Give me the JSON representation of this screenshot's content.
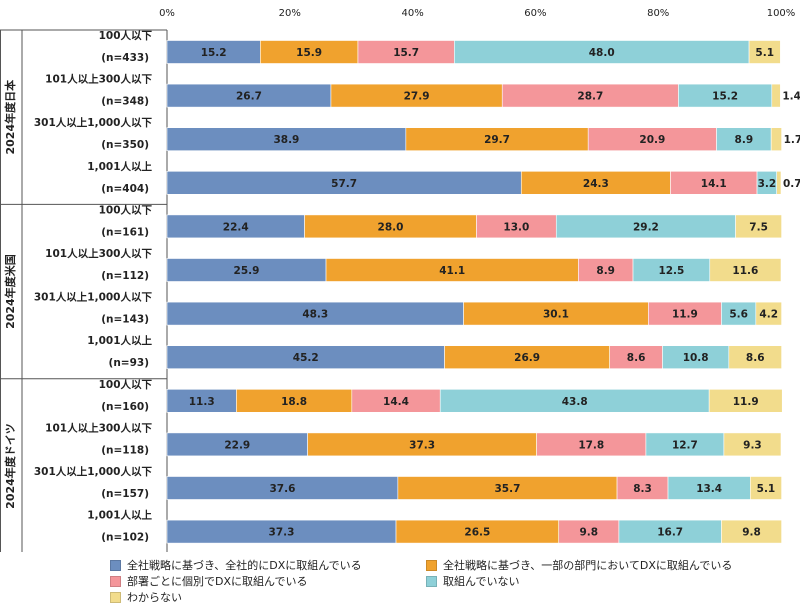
{
  "chart_data": {
    "type": "bar",
    "orientation": "horizontal",
    "stacked": true,
    "xlim": [
      0,
      100
    ],
    "x_ticks": [
      "0%",
      "20%",
      "40%",
      "60%",
      "80%",
      "100%"
    ],
    "series": [
      {
        "name": "全社戦略に基づき、全社的にDXに取組んでいる",
        "color": "#6C8EBF"
      },
      {
        "name": "全社戦略に基づき、一部の部門においてDXに取組んでいる",
        "color": "#F0A22E"
      },
      {
        "name": "部署ごとに個別でDXに取組んでいる",
        "color": "#F4969A"
      },
      {
        "name": "取組んでいない",
        "color": "#8ED0D8"
      },
      {
        "name": "わからない",
        "color": "#F2DC8C"
      }
    ],
    "groups": [
      {
        "label": "2024年度日本",
        "rows": [
          {
            "label": "100人以下",
            "n": "(n=433)",
            "values": [
              15.2,
              15.9,
              15.7,
              48.0,
              5.1
            ],
            "labels": [
              "15.2",
              "15.9",
              "15.7",
              "48.0",
              "5.1"
            ]
          },
          {
            "label": "101人以上300人以下",
            "n": "(n=348)",
            "values": [
              26.7,
              27.9,
              28.7,
              15.2,
              1.4
            ],
            "labels": [
              "26.7",
              "27.9",
              "28.7",
              "15.2",
              "1.4"
            ]
          },
          {
            "label": "301人以上1,000人以下",
            "n": "(n=350)",
            "values": [
              38.9,
              29.7,
              20.9,
              8.9,
              1.7
            ],
            "labels": [
              "38.9",
              "29.7",
              "20.9",
              "8.9",
              "1.7"
            ]
          },
          {
            "label": "1,001人以上",
            "n": "(n=404)",
            "values": [
              57.7,
              24.3,
              14.1,
              3.2,
              0.7
            ],
            "labels": [
              "57.7",
              "24.3",
              "14.1",
              "3.2",
              "0.7"
            ]
          }
        ]
      },
      {
        "label": "2024年度米国",
        "rows": [
          {
            "label": "100人以下",
            "n": "(n=161)",
            "values": [
              22.4,
              28.0,
              13.0,
              29.2,
              7.5
            ],
            "labels": [
              "22.4",
              "28.0",
              "13.0",
              "29.2",
              "7.5"
            ]
          },
          {
            "label": "101人以上300人以下",
            "n": "(n=112)",
            "values": [
              25.9,
              41.1,
              8.9,
              12.5,
              11.6
            ],
            "labels": [
              "25.9",
              "41.1",
              "8.9",
              "12.5",
              "11.6"
            ]
          },
          {
            "label": "301人以上1,000人以下",
            "n": "(n=143)",
            "values": [
              48.3,
              30.1,
              11.9,
              5.6,
              4.2
            ],
            "labels": [
              "48.3",
              "30.1",
              "11.9",
              "5.6",
              "4.2"
            ]
          },
          {
            "label": "1,001人以上",
            "n": "(n=93)",
            "values": [
              45.2,
              26.9,
              8.6,
              10.8,
              8.6
            ],
            "labels": [
              "45.2",
              "26.9",
              "8.6",
              "10.8",
              "8.6"
            ]
          }
        ]
      },
      {
        "label": "2024年度ドイツ",
        "rows": [
          {
            "label": "100人以下",
            "n": "(n=160)",
            "values": [
              11.3,
              18.8,
              14.4,
              43.8,
              11.9
            ],
            "labels": [
              "11.3",
              "18.8",
              "14.4",
              "43.8",
              "11.9"
            ]
          },
          {
            "label": "101人以上300人以下",
            "n": "(n=118)",
            "values": [
              22.9,
              37.3,
              17.8,
              12.7,
              9.3
            ],
            "labels": [
              "22.9",
              "37.3",
              "17.8",
              "12.7",
              "9.3"
            ]
          },
          {
            "label": "301人以上1,000人以下",
            "n": "(n=157)",
            "values": [
              37.6,
              35.7,
              8.3,
              13.4,
              5.1
            ],
            "labels": [
              "37.6",
              "35.7",
              "8.3",
              "13.4",
              "5.1"
            ]
          },
          {
            "label": "1,001人以上",
            "n": "(n=102)",
            "values": [
              37.3,
              26.5,
              9.8,
              16.7,
              9.8
            ],
            "labels": [
              "37.3",
              "26.5",
              "9.8",
              "16.7",
              "9.8"
            ]
          }
        ]
      }
    ],
    "legend_position": "bottom"
  }
}
